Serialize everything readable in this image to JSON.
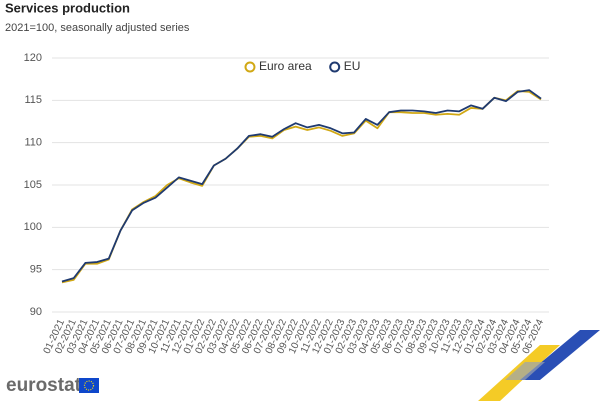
{
  "chart_data": {
    "type": "line",
    "title": "Services production",
    "subtitle": "2021=100, seasonally adjusted series",
    "categories": [
      "01-2021",
      "02-2021",
      "03-2021",
      "04-2021",
      "05-2021",
      "06-2021",
      "07-2021",
      "08-2021",
      "09-2021",
      "10-2021",
      "11-2021",
      "12-2021",
      "01-2022",
      "02-2022",
      "03-2022",
      "04-2022",
      "05-2022",
      "06-2022",
      "07-2022",
      "08-2022",
      "09-2022",
      "10-2022",
      "11-2022",
      "12-2022",
      "01-2023",
      "02-2023",
      "03-2023",
      "04-2023",
      "05-2023",
      "06-2023",
      "07-2023",
      "08-2023",
      "09-2023",
      "10-2023",
      "11-2023",
      "12-2023",
      "01-2024",
      "02-2024",
      "03-2024",
      "04-2024",
      "05-2024",
      "06-2024"
    ],
    "series": [
      {
        "name": "Euro area",
        "color": "#d1a814",
        "values": [
          93.5,
          93.8,
          95.7,
          95.7,
          96.2,
          99.6,
          102.1,
          103.0,
          103.7,
          105.0,
          105.8,
          105.3,
          104.9,
          107.3,
          108.1,
          109.3,
          110.7,
          110.8,
          110.5,
          111.5,
          111.9,
          111.5,
          111.8,
          111.4,
          110.8,
          111.1,
          112.6,
          111.7,
          113.6,
          113.6,
          113.5,
          113.5,
          113.3,
          113.4,
          113.3,
          114.1,
          114.0,
          115.3,
          115.0,
          116.1,
          116.0,
          115.1
        ]
      },
      {
        "name": "EU",
        "color": "#1f3a70",
        "values": [
          93.6,
          94.0,
          95.8,
          95.9,
          96.3,
          99.6,
          102.0,
          102.9,
          103.5,
          104.7,
          105.9,
          105.5,
          105.1,
          107.3,
          108.1,
          109.3,
          110.8,
          111.0,
          110.7,
          111.6,
          112.3,
          111.8,
          112.1,
          111.7,
          111.1,
          111.2,
          112.8,
          112.1,
          113.6,
          113.8,
          113.8,
          113.7,
          113.5,
          113.8,
          113.7,
          114.4,
          114.0,
          115.3,
          114.9,
          116.0,
          116.2,
          115.2
        ]
      }
    ],
    "ylim": [
      90,
      120
    ],
    "yticks": [
      90,
      95,
      100,
      105,
      110,
      115,
      120
    ],
    "grid": true,
    "legend": "top"
  },
  "footer": {
    "logo": "eurostat"
  }
}
